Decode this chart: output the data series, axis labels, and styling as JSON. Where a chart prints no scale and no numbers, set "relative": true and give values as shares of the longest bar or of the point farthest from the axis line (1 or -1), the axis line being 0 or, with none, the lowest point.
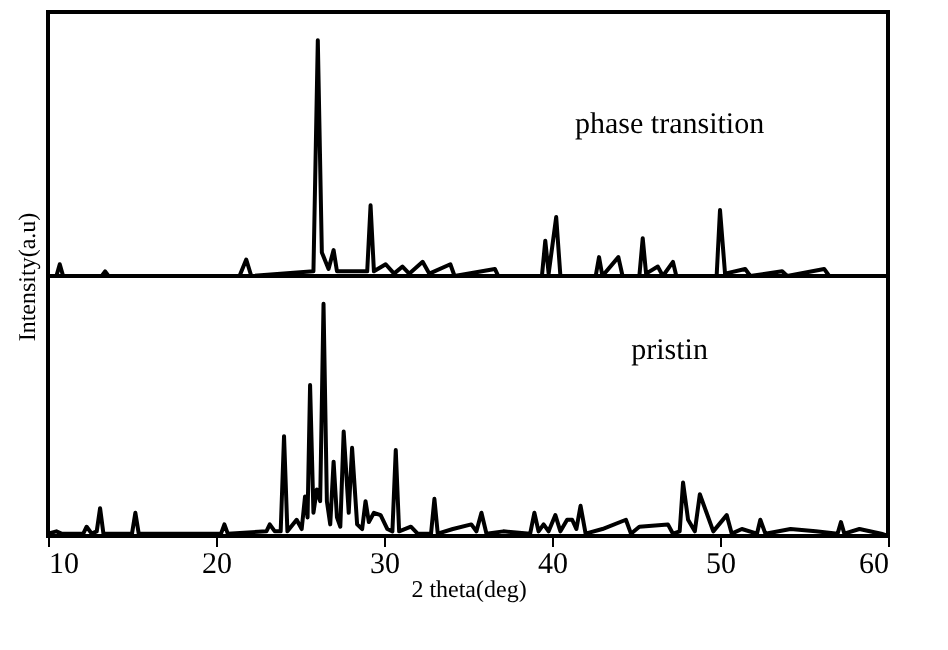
{
  "chart_data": [
    {
      "type": "line",
      "ylabel": "Intensity(a.u)",
      "relative": true,
      "tick_labels": false,
      "xlim": [
        10,
        60
      ],
      "xticks": [
        10,
        20,
        30,
        40,
        50,
        60
      ],
      "series": [
        {
          "name": "phase transition",
          "color": "#000000",
          "x": [
            10.0,
            10.5,
            10.7,
            10.9,
            13.2,
            13.4,
            13.6,
            21.4,
            21.8,
            22.1,
            25.8,
            26.06,
            26.3,
            26.7,
            27.0,
            27.2,
            29.0,
            29.2,
            29.4,
            30.1,
            30.6,
            31.1,
            31.5,
            32.3,
            32.7,
            33.95,
            34.2,
            36.6,
            36.8,
            39.4,
            39.6,
            39.8,
            40.25,
            40.5,
            42.6,
            42.8,
            43.0,
            43.95,
            44.2,
            45.2,
            45.4,
            45.6,
            46.3,
            46.6,
            47.2,
            47.4,
            49.8,
            50.0,
            50.3,
            51.5,
            51.8,
            53.7,
            54.0,
            56.2,
            56.5,
            60.0
          ],
          "values": [
            0,
            0,
            0.05,
            0,
            0,
            0.02,
            0,
            0,
            0.07,
            0,
            0.02,
            1.0,
            0.1,
            0.03,
            0.11,
            0.02,
            0.02,
            0.3,
            0.02,
            0.05,
            0.01,
            0.04,
            0.01,
            0.06,
            0.01,
            0.05,
            0,
            0.03,
            0,
            0,
            0.15,
            0.01,
            0.25,
            0,
            0,
            0.08,
            0,
            0.08,
            0,
            0,
            0.16,
            0.01,
            0.04,
            0,
            0.06,
            0,
            0,
            0.28,
            0.01,
            0.03,
            0,
            0.02,
            0,
            0.03,
            0,
            0
          ]
        }
      ]
    },
    {
      "type": "line",
      "xlabel": "2 theta(deg)",
      "relative": true,
      "tick_labels": "x",
      "xlim": [
        10,
        60
      ],
      "xticks": [
        10,
        20,
        30,
        40,
        50,
        60
      ],
      "series": [
        {
          "name": "pristin",
          "color": "#000000",
          "x": [
            10.0,
            10.5,
            10.8,
            12.1,
            12.3,
            12.6,
            12.9,
            13.1,
            13.3,
            15.0,
            15.2,
            15.4,
            17.6,
            20.3,
            20.5,
            20.7,
            23.0,
            23.2,
            23.5,
            23.85,
            24.05,
            24.25,
            24.8,
            25.1,
            25.3,
            25.45,
            25.6,
            25.8,
            26.0,
            26.2,
            26.4,
            26.6,
            26.8,
            27.0,
            27.2,
            27.4,
            27.6,
            27.9,
            28.1,
            28.4,
            28.7,
            28.9,
            29.1,
            29.4,
            29.8,
            30.2,
            30.5,
            30.7,
            30.9,
            31.6,
            32.0,
            32.8,
            33.0,
            33.2,
            34.1,
            35.2,
            35.5,
            35.8,
            36.1,
            37.1,
            38.7,
            38.95,
            39.2,
            39.5,
            39.8,
            40.2,
            40.5,
            40.9,
            41.2,
            41.45,
            41.7,
            42.0,
            43.0,
            44.4,
            44.7,
            45.2,
            46.9,
            47.2,
            47.6,
            47.8,
            48.1,
            48.5,
            48.8,
            49.2,
            49.6,
            50.4,
            50.7,
            51.3,
            52.2,
            52.4,
            52.7,
            54.2,
            55.7,
            57.0,
            57.2,
            57.4,
            58.3,
            59.6,
            60.0
          ],
          "values": [
            0.01,
            0.02,
            0.01,
            0.01,
            0.04,
            0.01,
            0.02,
            0.12,
            0.01,
            0.01,
            0.1,
            0.01,
            0.01,
            0.01,
            0.05,
            0.01,
            0.02,
            0.05,
            0.02,
            0.02,
            0.43,
            0.02,
            0.07,
            0.03,
            0.17,
            0.08,
            0.65,
            0.1,
            0.2,
            0.15,
            1.0,
            0.15,
            0.05,
            0.32,
            0.08,
            0.04,
            0.45,
            0.1,
            0.38,
            0.05,
            0.03,
            0.15,
            0.06,
            0.1,
            0.09,
            0.03,
            0.02,
            0.37,
            0.02,
            0.04,
            0.01,
            0.01,
            0.16,
            0.01,
            0.03,
            0.05,
            0.02,
            0.1,
            0.01,
            0.02,
            0.01,
            0.1,
            0.02,
            0.05,
            0.02,
            0.09,
            0.02,
            0.07,
            0.07,
            0.03,
            0.13,
            0.01,
            0.03,
            0.07,
            0.01,
            0.04,
            0.05,
            0.01,
            0.02,
            0.23,
            0.07,
            0.02,
            0.18,
            0.1,
            0.02,
            0.09,
            0.01,
            0.03,
            0.01,
            0.07,
            0.01,
            0.03,
            0.02,
            0.01,
            0.06,
            0.01,
            0.03,
            0.01,
            0.0
          ]
        }
      ]
    }
  ]
}
